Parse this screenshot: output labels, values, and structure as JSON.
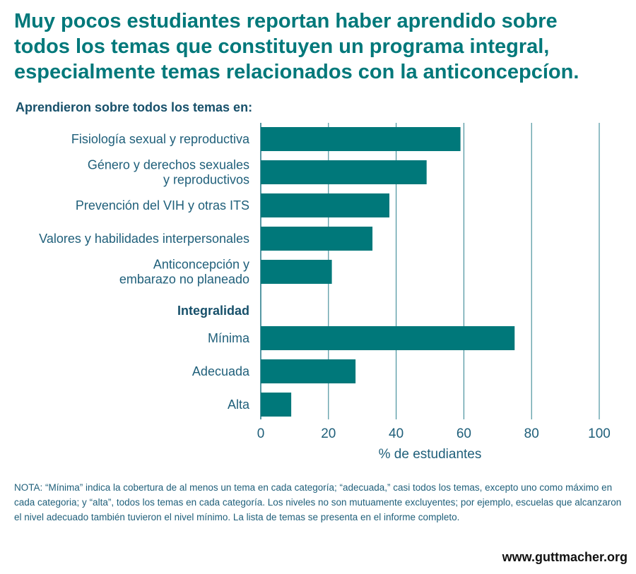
{
  "headline_lines": [
    "Muy pocos estudiantes reportan haber aprendido sobre",
    "todos los temas que constituyen un programa integral,",
    "especialmente temas relacionados con la anticoncepcíon."
  ],
  "chart_data": {
    "type": "bar",
    "orientation": "horizontal",
    "group_headings": [
      "Aprendieron sobre todos los temas en:",
      "Integralidad"
    ],
    "categories": [
      [
        "Fisiología sexual y reproductiva"
      ],
      [
        "Género y derechos sexuales",
        "y reproductivos"
      ],
      [
        "Prevención del VIH y otras ITS"
      ],
      [
        "Valores y habilidades interpersonales"
      ],
      [
        "Anticoncepción y",
        "embarazo no planeado"
      ],
      [
        "Mínima"
      ],
      [
        "Adecuada"
      ],
      [
        "Alta"
      ]
    ],
    "group_of_category": [
      0,
      0,
      0,
      0,
      0,
      1,
      1,
      1
    ],
    "values": [
      59,
      49,
      38,
      33,
      21,
      75,
      28,
      9
    ],
    "xlabel": "% de estudiantes",
    "xlim": [
      0,
      100
    ],
    "xticks": [
      0,
      20,
      40,
      60,
      80,
      100
    ],
    "grid": "vertical",
    "colors": {
      "bar": "#00787a",
      "grid": "#2a7f8c",
      "text": "#1f5f7a",
      "heading": "#17506a"
    }
  },
  "note": "NOTA: “Mínima” indica la cobertura de al menos un tema en cada categoría; “adecuada,” casi todos los temas, excepto uno como máximo en cada categoria; y “alta”, todos los temas en cada categoría. Los niveles no son mutuamente excluyentes; por ejemplo, escuelas que alcanzaron el nivel adecuado también tuvieron el nivel mínimo. La lista de temas se presenta en el informe completo.",
  "url": "www.guttmacher.org"
}
